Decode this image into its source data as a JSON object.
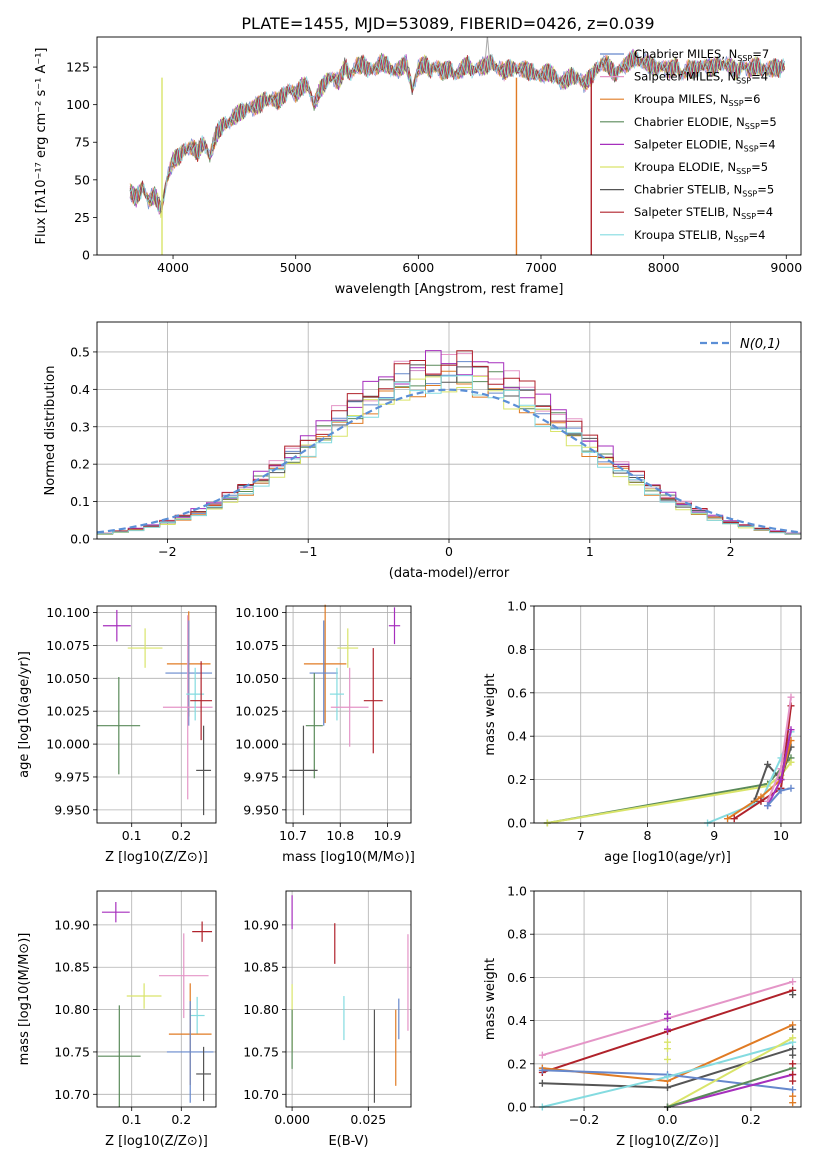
{
  "figure_title": "PLATE=1455, MJD=53089, FIBERID=0426, z=0.039",
  "chart_data": [
    {
      "id": "spectrum",
      "type": "line",
      "xlabel": "wavelength [Angstrom, rest frame]",
      "ylabel": "Flux [fλ10⁻¹⁷ erg cm⁻² s⁻¹ A⁻¹]",
      "xlim": [
        3380,
        9120
      ],
      "ylim": [
        0,
        145
      ],
      "xticks": [
        4000,
        5000,
        6000,
        7000,
        8000,
        9000
      ],
      "yticks": [
        0,
        25,
        50,
        75,
        100,
        125
      ],
      "legend_position": "top-right",
      "spectrum": {
        "x": [
          3650,
          3700,
          3750,
          3800,
          3850,
          3900,
          3950,
          4000,
          4050,
          4100,
          4150,
          4200,
          4250,
          4300,
          4350,
          4400,
          4450,
          4500,
          4550,
          4600,
          4650,
          4700,
          4750,
          4800,
          4850,
          4900,
          4950,
          5000,
          5050,
          5100,
          5150,
          5200,
          5250,
          5300,
          5350,
          5400,
          5450,
          5500,
          5550,
          5600,
          5650,
          5700,
          5750,
          5800,
          5850,
          5900,
          5950,
          6000,
          6050,
          6100,
          6150,
          6200,
          6250,
          6300,
          6350,
          6400,
          6450,
          6500,
          6550,
          6600,
          6650,
          6700,
          6750,
          6800,
          6850,
          6900,
          6950,
          7000,
          7050,
          7100,
          7150,
          7200,
          7250,
          7300,
          7350,
          7400,
          7450,
          7500,
          7550,
          7600,
          7650,
          7700,
          7750,
          7800,
          7850,
          7900,
          7950,
          8000,
          8050,
          8100,
          8150,
          8200,
          8250,
          8300,
          8350,
          8400,
          8450,
          8500,
          8550,
          8600,
          8650,
          8700,
          8750,
          8800,
          8850,
          8900,
          8950,
          9000
        ],
        "y": [
          42,
          38,
          45,
          36,
          40,
          30,
          50,
          63,
          66,
          70,
          72,
          68,
          75,
          65,
          80,
          86,
          88,
          92,
          95,
          97,
          98,
          100,
          103,
          104,
          102,
          106,
          110,
          107,
          112,
          113,
          100,
          110,
          116,
          118,
          115,
          125,
          120,
          126,
          127,
          123,
          124,
          128,
          126,
          122,
          124,
          128,
          110,
          124,
          127,
          123,
          125,
          122,
          124,
          120,
          123,
          127,
          122,
          125,
          126,
          128,
          124,
          122,
          125,
          123,
          124,
          122,
          121,
          119,
          122,
          120,
          115,
          116,
          119,
          118,
          114,
          118,
          123,
          128,
          126,
          120,
          124,
          127,
          131,
          129,
          128,
          126,
          124,
          125,
          123,
          126,
          120,
          124,
          123,
          125,
          126,
          124,
          127,
          127,
          125,
          122,
          126,
          123,
          126,
          124,
          123,
          125,
          124,
          127
        ]
      },
      "drops": [
        {
          "series": "Kroupa ELODIE",
          "x": 3910
        },
        {
          "series": "Kroupa MILES",
          "x": 6800
        },
        {
          "series": "Salpeter STELIB",
          "x": 7410
        }
      ],
      "series": [
        {
          "name": "Chabrier MILES",
          "legend": "Chabrier MILES, N",
          "sub": "SSP",
          "n": "=7",
          "color": "#6688cc"
        },
        {
          "name": "Salpeter MILES",
          "legend": "Salpeter MILES, N",
          "sub": "SSP",
          "n": "=4",
          "color": "#e495c7"
        },
        {
          "name": "Kroupa MILES",
          "legend": "Kroupa MILES, N",
          "sub": "SSP",
          "n": "=6",
          "color": "#e07b24"
        },
        {
          "name": "Chabrier ELODIE",
          "legend": "Chabrier ELODIE, N",
          "sub": "SSP",
          "n": "=5",
          "color": "#5a8a5a"
        },
        {
          "name": "Salpeter ELODIE",
          "legend": "Salpeter ELODIE, N",
          "sub": "SSP",
          "n": "=4",
          "color": "#a62fbd"
        },
        {
          "name": "Kroupa ELODIE",
          "legend": "Kroupa ELODIE, N",
          "sub": "SSP",
          "n": "=5",
          "color": "#d9e46a"
        },
        {
          "name": "Chabrier STELIB",
          "legend": "Chabrier STELIB, N",
          "sub": "SSP",
          "n": "=5",
          "color": "#555555"
        },
        {
          "name": "Salpeter STELIB",
          "legend": "Salpeter STELIB, N",
          "sub": "SSP",
          "n": "=4",
          "color": "#b0222b"
        },
        {
          "name": "Kroupa STELIB",
          "legend": "Kroupa STELIB, N",
          "sub": "SSP",
          "n": "=4",
          "color": "#84dbe0"
        }
      ]
    },
    {
      "id": "residual-histogram",
      "type": "histogram",
      "xlabel": "(data-model)/error",
      "ylabel": "Normed distribution",
      "xlim": [
        -2.5,
        2.5
      ],
      "ylim": [
        0,
        0.58
      ],
      "xticks": [
        -2,
        -1,
        0,
        1,
        2
      ],
      "yticks": [
        0.0,
        0.1,
        0.2,
        0.3,
        0.4,
        0.5
      ],
      "grid": true,
      "bin_edges_range": [
        -2.5,
        2.5
      ],
      "bin_width": 0.1111,
      "reference_curve": {
        "label": "N(0,1)",
        "style": "dashed",
        "color": "#5b8fd6",
        "legend_position": "top-right"
      }
    },
    {
      "id": "age-vs-Z",
      "type": "scatter",
      "xlabel": "Z [log10(Z/Z⊙)]",
      "ylabel": "age  [log10(age/yr)]",
      "xlim": [
        0.03,
        0.27
      ],
      "ylim": [
        9.94,
        10.105
      ],
      "xticks": [
        0.1,
        0.2
      ],
      "yticks": [
        9.95,
        9.975,
        10.0,
        10.025,
        10.05,
        10.075,
        10.1
      ],
      "grid": true,
      "points": [
        {
          "series": "Salpeter ELODIE",
          "x": 0.07,
          "y": 10.09,
          "xerr": 0.028,
          "yerr": 0.012
        },
        {
          "series": "Kroupa ELODIE",
          "x": 0.127,
          "y": 10.073,
          "xerr": 0.035,
          "yerr": 0.015
        },
        {
          "series": "Chabrier ELODIE",
          "x": 0.074,
          "y": 10.014,
          "xerr": 0.043,
          "yerr": 0.037
        },
        {
          "series": "Kroupa MILES",
          "x": 0.215,
          "y": 10.061,
          "xerr": 0.044,
          "yerr": 0.04
        },
        {
          "series": "Chabrier MILES",
          "x": 0.215,
          "y": 10.054,
          "xerr": 0.047,
          "yerr": 0.04
        },
        {
          "series": "Salpeter MILES",
          "x": 0.213,
          "y": 10.028,
          "xerr": 0.05,
          "yerr": 0.07
        },
        {
          "series": "Kroupa STELIB",
          "x": 0.228,
          "y": 10.038,
          "xerr": 0.018,
          "yerr": 0.02
        },
        {
          "series": "Salpeter STELIB",
          "x": 0.24,
          "y": 10.033,
          "xerr": 0.022,
          "yerr": 0.03
        },
        {
          "series": "Chabrier STELIB",
          "x": 0.245,
          "y": 9.98,
          "xerr": 0.015,
          "yerr": 0.034
        }
      ]
    },
    {
      "id": "age-vs-mass",
      "type": "scatter",
      "xlabel": "mass [log10(M/M⊙)]",
      "ylabel": "",
      "xlim": [
        10.685,
        10.95
      ],
      "ylim": [
        9.94,
        10.105
      ],
      "xticks": [
        10.7,
        10.8,
        10.9
      ],
      "yticks": [
        9.95,
        9.975,
        10.0,
        10.025,
        10.05,
        10.075,
        10.1
      ],
      "grid": true,
      "points": [
        {
          "series": "Salpeter ELODIE",
          "x": 10.915,
          "y": 10.09,
          "xerr": 0.012,
          "yerr": 0.014
        },
        {
          "series": "Kroupa ELODIE",
          "x": 10.816,
          "y": 10.073,
          "xerr": 0.022,
          "yerr": 0.015
        },
        {
          "series": "Kroupa MILES",
          "x": 10.768,
          "y": 10.061,
          "xerr": 0.045,
          "yerr": 0.045
        },
        {
          "series": "Chabrier MILES",
          "x": 10.765,
          "y": 10.054,
          "xerr": 0.03,
          "yerr": 0.04
        },
        {
          "series": "Kroupa STELIB",
          "x": 10.793,
          "y": 10.038,
          "xerr": 0.015,
          "yerr": 0.02
        },
        {
          "series": "Salpeter STELIB",
          "x": 10.87,
          "y": 10.033,
          "xerr": 0.02,
          "yerr": 0.04
        },
        {
          "series": "Salpeter MILES",
          "x": 10.82,
          "y": 10.028,
          "xerr": 0.04,
          "yerr": 0.03
        },
        {
          "series": "Chabrier ELODIE",
          "x": 10.745,
          "y": 10.014,
          "xerr": 0.018,
          "yerr": 0.04
        },
        {
          "series": "Chabrier STELIB",
          "x": 10.722,
          "y": 9.98,
          "xerr": 0.03,
          "yerr": 0.034
        }
      ]
    },
    {
      "id": "mass-weight-vs-age",
      "type": "line",
      "xlabel": "age  [log10(age/yr)]",
      "ylabel": "mass weight",
      "xlim": [
        6.3,
        10.3
      ],
      "ylim": [
        0.0,
        1.0
      ],
      "xticks": [
        7,
        8,
        9,
        10
      ],
      "yticks": [
        0.0,
        0.2,
        0.4,
        0.6,
        0.8,
        1.0
      ],
      "grid": true,
      "series": [
        {
          "series": "Chabrier ELODIE",
          "x": [
            6.5,
            9.8,
            10.0,
            10.15
          ],
          "y": [
            0.0,
            0.18,
            0.25,
            0.3
          ]
        },
        {
          "series": "Kroupa ELODIE",
          "x": [
            6.5,
            9.8,
            10.0,
            10.15
          ],
          "y": [
            0.0,
            0.17,
            0.22,
            0.28
          ]
        },
        {
          "series": "Chabrier STELIB",
          "x": [
            9.6,
            9.8,
            10.0,
            10.15
          ],
          "y": [
            0.1,
            0.27,
            0.2,
            0.35
          ]
        },
        {
          "series": "Kroupa STELIB",
          "x": [
            8.9,
            9.7,
            10.0,
            10.15
          ],
          "y": [
            0.0,
            0.1,
            0.3,
            0.42
          ]
        },
        {
          "series": "Kroupa MILES",
          "x": [
            9.2,
            9.7,
            10.0,
            10.15
          ],
          "y": [
            0.02,
            0.12,
            0.2,
            0.38
          ]
        },
        {
          "series": "Salpeter STELIB",
          "x": [
            9.3,
            9.7,
            10.0,
            10.15
          ],
          "y": [
            0.02,
            0.1,
            0.16,
            0.54
          ]
        },
        {
          "series": "Salpeter MILES",
          "x": [
            9.8,
            10.0,
            10.15
          ],
          "y": [
            0.1,
            0.25,
            0.58
          ]
        },
        {
          "series": "Salpeter ELODIE",
          "x": [
            9.8,
            10.0,
            10.15
          ],
          "y": [
            0.08,
            0.2,
            0.43
          ]
        },
        {
          "series": "Chabrier MILES",
          "x": [
            9.8,
            10.0,
            10.15
          ],
          "y": [
            0.08,
            0.15,
            0.16
          ]
        }
      ]
    },
    {
      "id": "mass-vs-Z",
      "type": "scatter",
      "xlabel": "Z [log10(Z/Z⊙)]",
      "ylabel": "mass [log10(M/M⊙)]",
      "xlim": [
        0.03,
        0.27
      ],
      "ylim": [
        10.685,
        10.94
      ],
      "xticks": [
        0.1,
        0.2
      ],
      "yticks": [
        10.7,
        10.75,
        10.8,
        10.85,
        10.9
      ],
      "grid": true,
      "points": [
        {
          "series": "Salpeter ELODIE",
          "x": 0.068,
          "y": 10.915,
          "xerr": 0.028,
          "yerr": 0.012
        },
        {
          "series": "Salpeter STELIB",
          "x": 0.242,
          "y": 10.892,
          "xerr": 0.02,
          "yerr": 0.012
        },
        {
          "series": "Salpeter MILES",
          "x": 0.205,
          "y": 10.84,
          "xerr": 0.05,
          "yerr": 0.05
        },
        {
          "series": "Kroupa ELODIE",
          "x": 0.125,
          "y": 10.816,
          "xerr": 0.035,
          "yerr": 0.015
        },
        {
          "series": "Kroupa STELIB",
          "x": 0.232,
          "y": 10.793,
          "xerr": 0.015,
          "yerr": 0.022
        },
        {
          "series": "Kroupa MILES",
          "x": 0.218,
          "y": 10.771,
          "xerr": 0.043,
          "yerr": 0.06
        },
        {
          "series": "Chabrier MILES",
          "x": 0.218,
          "y": 10.75,
          "xerr": 0.047,
          "yerr": 0.06
        },
        {
          "series": "Chabrier ELODIE",
          "x": 0.075,
          "y": 10.745,
          "xerr": 0.043,
          "yerr": 0.06
        },
        {
          "series": "Chabrier STELIB",
          "x": 0.245,
          "y": 10.724,
          "xerr": 0.015,
          "yerr": 0.032
        }
      ]
    },
    {
      "id": "mass-vs-EBV",
      "type": "scatter",
      "xlabel": "E(B-V)",
      "ylabel": "",
      "xlim": [
        -0.002,
        0.039
      ],
      "ylim": [
        10.685,
        10.94
      ],
      "xticks": [
        0.0,
        0.025
      ],
      "yticks": [
        10.7,
        10.75,
        10.8,
        10.85,
        10.9
      ],
      "grid": true,
      "points": [
        {
          "series": "Salpeter ELODIE",
          "x": 0.0,
          "y": 10.915,
          "yerr": 0.02
        },
        {
          "series": "Salpeter STELIB",
          "x": 0.014,
          "y": 10.878,
          "yerr": 0.024
        },
        {
          "series": "Salpeter MILES",
          "x": 0.038,
          "y": 10.832,
          "yerr": 0.057
        },
        {
          "series": "Kroupa ELODIE",
          "x": 0.0,
          "y": 10.79,
          "yerr": 0.04
        },
        {
          "series": "Kroupa STELIB",
          "x": 0.017,
          "y": 10.79,
          "yerr": 0.026
        },
        {
          "series": "Chabrier MILES",
          "x": 0.035,
          "y": 10.789,
          "yerr": 0.024
        },
        {
          "series": "Kroupa MILES",
          "x": 0.034,
          "y": 10.755,
          "yerr": 0.045
        },
        {
          "series": "Chabrier STELIB",
          "x": 0.027,
          "y": 10.745,
          "yerr": 0.055
        },
        {
          "series": "Chabrier ELODIE",
          "x": 0.0,
          "y": 10.765,
          "yerr": 0.035
        }
      ]
    },
    {
      "id": "mass-weight-vs-Z",
      "type": "line",
      "xlabel": "Z [log10(Z/Z⊙)]",
      "ylabel": "mass weight",
      "xlim": [
        -0.32,
        0.32
      ],
      "ylim": [
        0.0,
        1.0
      ],
      "xticks": [
        -0.2,
        0.0,
        0.2
      ],
      "yticks": [
        0.0,
        0.2,
        0.4,
        0.6,
        0.8,
        1.0
      ],
      "grid": true,
      "series": [
        {
          "series": "Salpeter MILES",
          "x": [
            -0.3,
            0.3
          ],
          "y": [
            0.24,
            0.58
          ]
        },
        {
          "series": "Salpeter STELIB",
          "x": [
            -0.3,
            0.0,
            0.3
          ],
          "y": [
            0.16,
            0.35,
            0.54
          ]
        },
        {
          "series": "Kroupa MILES",
          "x": [
            -0.3,
            0.0,
            0.3
          ],
          "y": [
            0.18,
            0.12,
            0.38
          ]
        },
        {
          "series": "Chabrier STELIB",
          "x": [
            -0.3,
            0.0,
            0.3
          ],
          "y": [
            0.11,
            0.09,
            0.27
          ]
        },
        {
          "series": "Chabrier MILES",
          "x": [
            -0.3,
            0.0,
            0.3
          ],
          "y": [
            0.17,
            0.15,
            0.08
          ]
        },
        {
          "series": "Kroupa STELIB",
          "x": [
            -0.3,
            0.0,
            0.3
          ],
          "y": [
            0.0,
            0.14,
            0.3
          ]
        },
        {
          "series": "Kroupa ELODIE",
          "x": [
            0.0,
            0.3
          ],
          "y": [
            0.0,
            0.32
          ]
        },
        {
          "series": "Salpeter ELODIE",
          "x": [
            0.0,
            0.3
          ],
          "y": [
            0.0,
            0.15
          ]
        },
        {
          "series": "Chabrier ELODIE",
          "x": [
            0.0,
            0.3
          ],
          "y": [
            0.0,
            0.18
          ]
        }
      ],
      "stacked_markers": [
        {
          "series": "Salpeter ELODIE",
          "x": 0.0,
          "y": [
            0.41,
            0.43,
            0.36
          ]
        },
        {
          "series": "Kroupa ELODIE",
          "x": 0.0,
          "y": [
            0.22,
            0.3,
            0.27
          ]
        },
        {
          "series": "Chabrier STELIB",
          "x": 0.3,
          "y": [
            0.36,
            0.52,
            0.24
          ]
        },
        {
          "series": "Salpeter STELIB",
          "x": 0.3,
          "y": [
            0.12,
            0.15,
            0.2
          ]
        },
        {
          "series": "Kroupa MILES",
          "x": 0.3,
          "y": [
            0.02,
            0.05
          ]
        }
      ]
    }
  ]
}
